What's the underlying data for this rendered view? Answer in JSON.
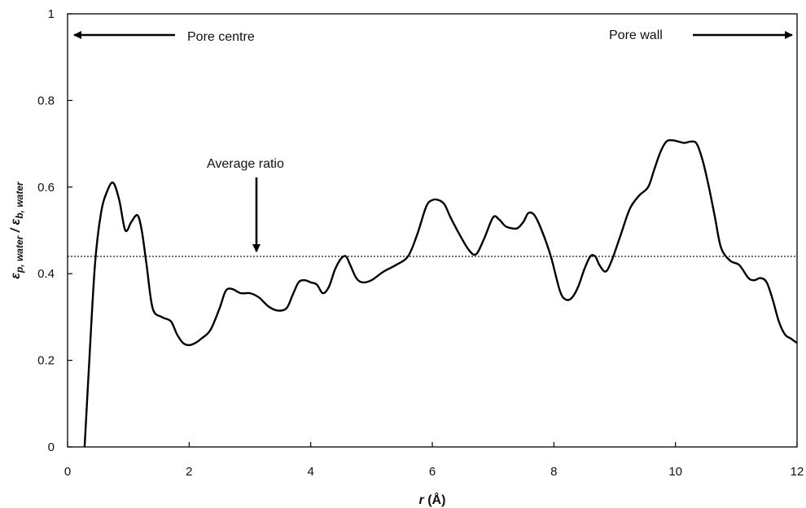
{
  "chart_data": {
    "type": "line",
    "xlabel": "r (Å)",
    "xlabel_var": "r",
    "xlabel_unit": " (Å)",
    "ylabel": "εp, water / εb, water",
    "ylabel_parts": {
      "eps1": "ε",
      "sub1": "p, water",
      "sep": " / ",
      "eps2": "ε",
      "sub2": "b, water"
    },
    "xlim": [
      0,
      12
    ],
    "ylim": [
      0,
      1
    ],
    "x_ticks": [
      0,
      2,
      4,
      6,
      8,
      10,
      12
    ],
    "x_tick_labels": [
      "0",
      "2",
      "4",
      "6",
      "8",
      "10",
      "12"
    ],
    "y_ticks": [
      0,
      0.2,
      0.4,
      0.6,
      0.8,
      1
    ],
    "y_tick_labels": [
      "0",
      "0.2",
      "0.4",
      "0.6",
      "0.8",
      "1"
    ],
    "grid": false,
    "series": [
      {
        "color": "#000000",
        "style": "solid",
        "x": [
          0.28,
          0.35,
          0.45,
          0.55,
          0.65,
          0.75,
          0.85,
          0.95,
          1.05,
          1.15,
          1.22,
          1.3,
          1.4,
          1.55,
          1.7,
          1.8,
          1.9,
          2.0,
          2.1,
          2.2,
          2.35,
          2.5,
          2.6,
          2.7,
          2.85,
          3.0,
          3.15,
          3.3,
          3.45,
          3.6,
          3.7,
          3.8,
          3.9,
          4.0,
          4.1,
          4.2,
          4.3,
          4.4,
          4.5,
          4.58,
          4.65,
          4.75,
          4.85,
          5.0,
          5.2,
          5.4,
          5.6,
          5.75,
          5.9,
          6.0,
          6.1,
          6.2,
          6.3,
          6.45,
          6.6,
          6.72,
          6.85,
          7.0,
          7.1,
          7.2,
          7.3,
          7.4,
          7.5,
          7.58,
          7.68,
          7.8,
          7.95,
          8.1,
          8.2,
          8.3,
          8.4,
          8.5,
          8.6,
          8.68,
          8.75,
          8.85,
          8.95,
          9.1,
          9.25,
          9.4,
          9.55,
          9.65,
          9.75,
          9.85,
          9.95,
          10.05,
          10.15,
          10.25,
          10.35,
          10.45,
          10.55,
          10.65,
          10.75,
          10.9,
          11.05,
          11.2,
          11.3,
          11.4,
          11.5,
          11.6,
          11.7,
          11.8,
          11.9,
          12.0
        ],
        "y": [
          0.0,
          0.18,
          0.42,
          0.54,
          0.59,
          0.61,
          0.57,
          0.5,
          0.52,
          0.535,
          0.5,
          0.42,
          0.32,
          0.3,
          0.29,
          0.26,
          0.24,
          0.235,
          0.24,
          0.25,
          0.27,
          0.32,
          0.36,
          0.365,
          0.355,
          0.355,
          0.345,
          0.325,
          0.315,
          0.32,
          0.35,
          0.38,
          0.385,
          0.38,
          0.375,
          0.355,
          0.37,
          0.41,
          0.435,
          0.44,
          0.42,
          0.39,
          0.38,
          0.385,
          0.405,
          0.42,
          0.44,
          0.49,
          0.555,
          0.57,
          0.57,
          0.56,
          0.53,
          0.49,
          0.455,
          0.445,
          0.48,
          0.53,
          0.525,
          0.51,
          0.505,
          0.505,
          0.52,
          0.54,
          0.535,
          0.5,
          0.44,
          0.36,
          0.34,
          0.345,
          0.37,
          0.41,
          0.44,
          0.44,
          0.42,
          0.405,
          0.43,
          0.49,
          0.55,
          0.58,
          0.6,
          0.64,
          0.68,
          0.705,
          0.708,
          0.705,
          0.702,
          0.705,
          0.7,
          0.66,
          0.6,
          0.53,
          0.46,
          0.43,
          0.42,
          0.39,
          0.385,
          0.39,
          0.38,
          0.34,
          0.29,
          0.26,
          0.25,
          0.24
        ]
      },
      {
        "color": "#000000",
        "style": "dotted",
        "x": [
          0.0,
          12.0
        ],
        "y": [
          0.44,
          0.44
        ]
      }
    ],
    "annotations": [
      {
        "text": "Pore centre",
        "arrow": "left"
      },
      {
        "text": "Pore wall",
        "arrow": "right"
      },
      {
        "text": "Average ratio",
        "arrow": "down",
        "x": 3.1,
        "y": 0.44
      }
    ]
  }
}
